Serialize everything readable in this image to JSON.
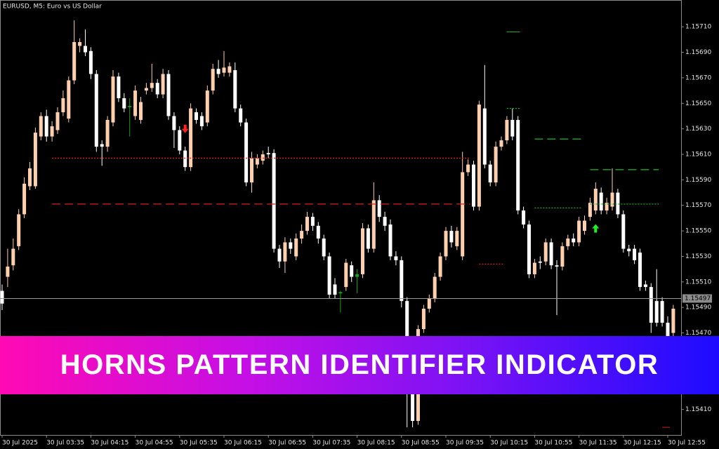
{
  "chart_data": {
    "type": "candlestick",
    "title": "EURUSD, M5:  Euro vs US Dollar",
    "banner": "HORNS PATTERN IDENTIFIER INDICATOR",
    "up_color": "#ffcfae",
    "down_color": "#ffffff",
    "signal_candles": {
      "indices": [
        23,
        61,
        64
      ],
      "color": "#1e9e1e"
    },
    "ylim": [
      1.1539,
      1.15731
    ],
    "yticks": [
      {
        "value": 1.1571,
        "label": "1.15710"
      },
      {
        "value": 1.1569,
        "label": "1.15690"
      },
      {
        "value": 1.1567,
        "label": "1.15670"
      },
      {
        "value": 1.1565,
        "label": "1.15650"
      },
      {
        "value": 1.1563,
        "label": "1.15630"
      },
      {
        "value": 1.1561,
        "label": "1.15610"
      },
      {
        "value": 1.1559,
        "label": "1.15590"
      },
      {
        "value": 1.1557,
        "label": "1.15570"
      },
      {
        "value": 1.1555,
        "label": "1.15550"
      },
      {
        "value": 1.1553,
        "label": "1.15530"
      },
      {
        "value": 1.1551,
        "label": "1.15510"
      },
      {
        "value": 1.1549,
        "label": "1.15490"
      },
      {
        "value": 1.1547,
        "label": "1.15470"
      },
      {
        "value": 1.1541,
        "label": "1.15410"
      }
    ],
    "current_price": 1.15497,
    "xticks": [
      {
        "value": 0,
        "label": "30 Jul 2025"
      },
      {
        "value": 8,
        "label": "30 Jul 03:35"
      },
      {
        "value": 16,
        "label": "30 Jul 04:15"
      },
      {
        "value": 24,
        "label": "30 Jul 04:55"
      },
      {
        "value": 32,
        "label": "30 Jul 05:35"
      },
      {
        "value": 40,
        "label": "30 Jul 06:15"
      },
      {
        "value": 48,
        "label": "30 Jul 06:55"
      },
      {
        "value": 56,
        "label": "30 Jul 07:35"
      },
      {
        "value": 64,
        "label": "30 Jul 08:15"
      },
      {
        "value": 72,
        "label": "30 Jul 08:55"
      },
      {
        "value": 80,
        "label": "30 Jul 09:35"
      },
      {
        "value": 88,
        "label": "30 Jul 10:15"
      },
      {
        "value": 96,
        "label": "30 Jul 10:55"
      },
      {
        "value": 104,
        "label": "30 Jul 11:35"
      },
      {
        "value": 112,
        "label": "30 Jul 12:15"
      },
      {
        "value": 120,
        "label": "30 Jul 12:55"
      }
    ],
    "open": [
      1.15503,
      1.15514,
      1.15523,
      1.15538,
      1.15563,
      1.15585,
      1.15585,
      1.15624,
      1.1564,
      1.15624,
      1.15629,
      1.15643,
      1.15638,
      1.15668,
      1.15695,
      1.15695,
      1.15691,
      1.15673,
      1.15618,
      1.15616,
      1.15635,
      1.15671,
      1.15654,
      1.15648,
      1.1564,
      1.15637,
      1.1566,
      1.15662,
      1.15666,
      1.15657,
      1.15673,
      1.1564,
      1.15629,
      1.15613,
      1.156,
      1.15643,
      1.1564,
      1.15635,
      1.1566,
      1.15677,
      1.15674,
      1.15674,
      1.15676,
      1.15646,
      1.15635,
      1.15588,
      1.15602,
      1.15605,
      1.15611,
      1.15611,
      1.15536,
      1.15526,
      1.15541,
      1.1553,
      1.15544,
      1.1555,
      1.15561,
      1.15554,
      1.15544,
      1.1553,
      1.15508,
      1.15502,
      1.15506,
      1.15523,
      1.15514,
      1.15516,
      1.15552,
      1.15536,
      1.15574,
      1.15561,
      1.15555,
      1.1553,
      1.15527,
      1.15495,
      1.15423,
      1.15401,
      1.15473,
      1.15489,
      1.15497,
      1.15514,
      1.1553,
      1.1555,
      1.15538,
      1.1553,
      1.15596,
      1.15602,
      1.15569,
      1.15646,
      1.15602,
      1.15588,
      1.15616,
      1.15621,
      1.15637,
      1.15637,
      1.15566,
      1.15555,
      1.15516,
      1.15526,
      1.15526,
      1.15541,
      1.15523,
      1.15522,
      1.15538,
      1.15544,
      1.15541,
      1.1555,
      1.15561,
      1.15566,
      1.1558,
      1.15566,
      1.15569,
      1.1558,
      1.15563,
      1.15536,
      1.15536,
      1.15533,
      1.15508,
      1.15506,
      1.15495,
      1.15495,
      1.15478,
      1.1547
    ],
    "high": [
      1.15508,
      1.15536,
      1.15544,
      1.15567,
      1.15592,
      1.15604,
      1.15631,
      1.15643,
      1.15645,
      1.15636,
      1.15647,
      1.1566,
      1.15671,
      1.15715,
      1.15701,
      1.15708,
      1.15694,
      1.15676,
      1.15621,
      1.1564,
      1.15676,
      1.15674,
      1.15658,
      1.15654,
      1.15664,
      1.15655,
      1.15666,
      1.15681,
      1.15669,
      1.15677,
      1.15676,
      1.15643,
      1.15632,
      1.15616,
      1.1565,
      1.15646,
      1.15643,
      1.15664,
      1.15681,
      1.15684,
      1.15691,
      1.15682,
      1.15682,
      1.15649,
      1.15638,
      1.15612,
      1.1561,
      1.15613,
      1.15616,
      1.15614,
      1.15539,
      1.15545,
      1.15544,
      1.15548,
      1.15555,
      1.15565,
      1.15564,
      1.15557,
      1.15547,
      1.15533,
      1.15513,
      1.15503,
      1.15528,
      1.15526,
      1.1552,
      1.15556,
      1.15555,
      1.15588,
      1.15578,
      1.15565,
      1.15559,
      1.15534,
      1.1553,
      1.15498,
      1.1543,
      1.15476,
      1.15492,
      1.155,
      1.15517,
      1.15533,
      1.15553,
      1.15554,
      1.15553,
      1.15612,
      1.15606,
      1.15605,
      1.15652,
      1.1568,
      1.15605,
      1.1562,
      1.15624,
      1.1564,
      1.15646,
      1.1564,
      1.15569,
      1.15558,
      1.15528,
      1.1553,
      1.15544,
      1.15544,
      1.15527,
      1.15541,
      1.15547,
      1.15548,
      1.15561,
      1.15562,
      1.15576,
      1.15588,
      1.15584,
      1.15576,
      1.15599,
      1.15583,
      1.15566,
      1.15539,
      1.15539,
      1.15536,
      1.15511,
      1.15509,
      1.1552,
      1.15498,
      1.15483,
      1.15492
    ],
    "low": [
      1.15488,
      1.15506,
      1.15519,
      1.15535,
      1.1556,
      1.15582,
      1.15583,
      1.15621,
      1.1562,
      1.1562,
      1.15626,
      1.1564,
      1.15635,
      1.15665,
      1.1569,
      1.15687,
      1.15669,
      1.15612,
      1.15601,
      1.15612,
      1.15632,
      1.15651,
      1.15643,
      1.15624,
      1.15637,
      1.15634,
      1.15657,
      1.15659,
      1.15654,
      1.15654,
      1.15637,
      1.15615,
      1.1561,
      1.15597,
      1.15597,
      1.15634,
      1.15629,
      1.15632,
      1.15657,
      1.1567,
      1.15671,
      1.15671,
      1.15643,
      1.15632,
      1.15585,
      1.1558,
      1.15599,
      1.15602,
      1.15607,
      1.15533,
      1.15521,
      1.15517,
      1.15532,
      1.15527,
      1.1554,
      1.15547,
      1.1555,
      1.1554,
      1.15527,
      1.15497,
      1.15497,
      1.15486,
      1.15503,
      1.1551,
      1.15501,
      1.15513,
      1.15533,
      1.15533,
      1.15557,
      1.1555,
      1.15527,
      1.15523,
      1.1549,
      1.15396,
      1.15396,
      1.15398,
      1.1547,
      1.15486,
      1.15494,
      1.15511,
      1.15527,
      1.15537,
      1.15535,
      1.15527,
      1.15593,
      1.15566,
      1.15566,
      1.15599,
      1.15585,
      1.15585,
      1.15613,
      1.15618,
      1.15621,
      1.15563,
      1.15552,
      1.15513,
      1.15513,
      1.1552,
      1.15523,
      1.1552,
      1.15484,
      1.15519,
      1.15535,
      1.15538,
      1.15538,
      1.15547,
      1.15558,
      1.15563,
      1.15563,
      1.15563,
      1.15566,
      1.1556,
      1.15533,
      1.1553,
      1.15524,
      1.15503,
      1.15503,
      1.1547,
      1.15475,
      1.15475,
      1.15463,
      1.15467
    ],
    "close": [
      1.15493,
      1.15522,
      1.15536,
      1.15563,
      1.15587,
      1.15599,
      1.15627,
      1.1564,
      1.15624,
      1.15632,
      1.15643,
      1.15654,
      1.15668,
      1.15698,
      1.15698,
      1.1569,
      1.15673,
      1.15616,
      1.15616,
      1.15637,
      1.15671,
      1.15654,
      1.15646,
      1.15647,
      1.1566,
      1.15651,
      1.15662,
      1.15666,
      1.15657,
      1.15673,
      1.1564,
      1.15629,
      1.15613,
      1.156,
      1.15646,
      1.15637,
      1.15632,
      1.1566,
      1.15677,
      1.15673,
      1.15678,
      1.15679,
      1.15646,
      1.15635,
      1.15588,
      1.15607,
      1.15607,
      1.1561,
      1.1561,
      1.15536,
      1.15526,
      1.15541,
      1.15536,
      1.15544,
      1.1555,
      1.15561,
      1.15554,
      1.15544,
      1.1553,
      1.155,
      1.155,
      1.15501,
      1.15525,
      1.15514,
      1.15516,
      1.15552,
      1.15536,
      1.15574,
      1.15561,
      1.15554,
      1.1553,
      1.15527,
      1.15495,
      1.15423,
      1.15401,
      1.15473,
      1.15489,
      1.15497,
      1.15514,
      1.1553,
      1.1555,
      1.15541,
      1.1555,
      1.15596,
      1.15602,
      1.15569,
      1.15649,
      1.15602,
      1.15588,
      1.15616,
      1.15621,
      1.15637,
      1.15624,
      1.15566,
      1.15555,
      1.15516,
      1.15525,
      1.15525,
      1.15541,
      1.15523,
      1.15522,
      1.15538,
      1.15544,
      1.15541,
      1.15558,
      1.15558,
      1.15572,
      1.15583,
      1.15566,
      1.15572,
      1.1558,
      1.15563,
      1.15536,
      1.15534,
      1.15527,
      1.15506,
      1.15506,
      1.15478,
      1.15478,
      1.15478,
      1.15467,
      1.15489
    ],
    "levels": [
      {
        "from": 9,
        "to": 84,
        "price": 1.15607,
        "color": "#d42020",
        "style": "dotted"
      },
      {
        "from": 9,
        "to": 84,
        "price": 1.15571,
        "color": "#d42020",
        "style": "dashed"
      },
      {
        "from": 86,
        "to": 90,
        "price": 1.15524,
        "color": "#d42020",
        "style": "dotted"
      },
      {
        "from": 91,
        "to": 93,
        "price": 1.15706,
        "color": "#1fa81f",
        "style": "solid"
      },
      {
        "from": 91,
        "to": 93,
        "price": 1.15646,
        "color": "#1fa81f",
        "style": "dotted"
      },
      {
        "from": 96,
        "to": 104,
        "price": 1.15622,
        "color": "#1fa81f",
        "style": "dashed"
      },
      {
        "from": 96,
        "to": 104,
        "price": 1.15568,
        "color": "#1fa81f",
        "style": "dotted"
      },
      {
        "from": 106,
        "to": 118,
        "price": 1.15598,
        "color": "#1fa81f",
        "style": "dashed"
      },
      {
        "from": 106,
        "to": 118,
        "price": 1.15571,
        "color": "#1fa81f",
        "style": "dotted"
      },
      {
        "from": 119,
        "to": 120,
        "price": 1.15396,
        "color": "#d42020",
        "style": "solid"
      }
    ],
    "arrows": [
      {
        "index": 33,
        "price": 1.1563,
        "direction": "down",
        "color": "#ff2020"
      },
      {
        "index": 107,
        "price": 1.15552,
        "direction": "up",
        "color": "#22ee22"
      }
    ]
  }
}
